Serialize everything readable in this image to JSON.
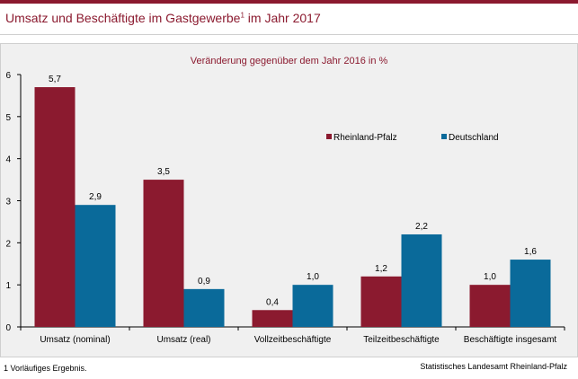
{
  "header": {
    "title_main": "Umsatz und Beschäftigte im Gastgewerbe",
    "title_sup": "1",
    "title_end": " im Jahr 2017"
  },
  "colors": {
    "accent": "#8b1a2f",
    "series1": "#8b1a2f",
    "series2": "#0a6a9a"
  },
  "chart_data": {
    "type": "bar",
    "subtitle": "Veränderung gegenüber dem Jahr 2016 in %",
    "categories": [
      "Umsatz (nominal)",
      "Umsatz (real)",
      "Vollzeitbeschäftigte",
      "Teilzeitbeschäftigte",
      "Beschäftigte insgesamt"
    ],
    "series": [
      {
        "name": "Rheinland-Pfalz",
        "values": [
          5.7,
          3.5,
          0.4,
          1.2,
          1.0
        ],
        "labels": [
          "5,7",
          "3,5",
          "0,4",
          "1,2",
          "1,0"
        ],
        "color": "#8b1a2f"
      },
      {
        "name": "Deutschland",
        "values": [
          2.9,
          0.9,
          1.0,
          2.2,
          1.6
        ],
        "labels": [
          "2,9",
          "0,9",
          "1,0",
          "2,2",
          "1,6"
        ],
        "color": "#0a6a9a"
      }
    ],
    "ylim": [
      0,
      6
    ],
    "yticks": [
      0,
      1,
      2,
      3,
      4,
      5,
      6
    ],
    "grid": false,
    "legend_position": "right"
  },
  "footer": {
    "footnote": "1 Vorläufiges Ergebnis.",
    "source": "Statistisches Landesamt Rheinland-Pfalz"
  }
}
